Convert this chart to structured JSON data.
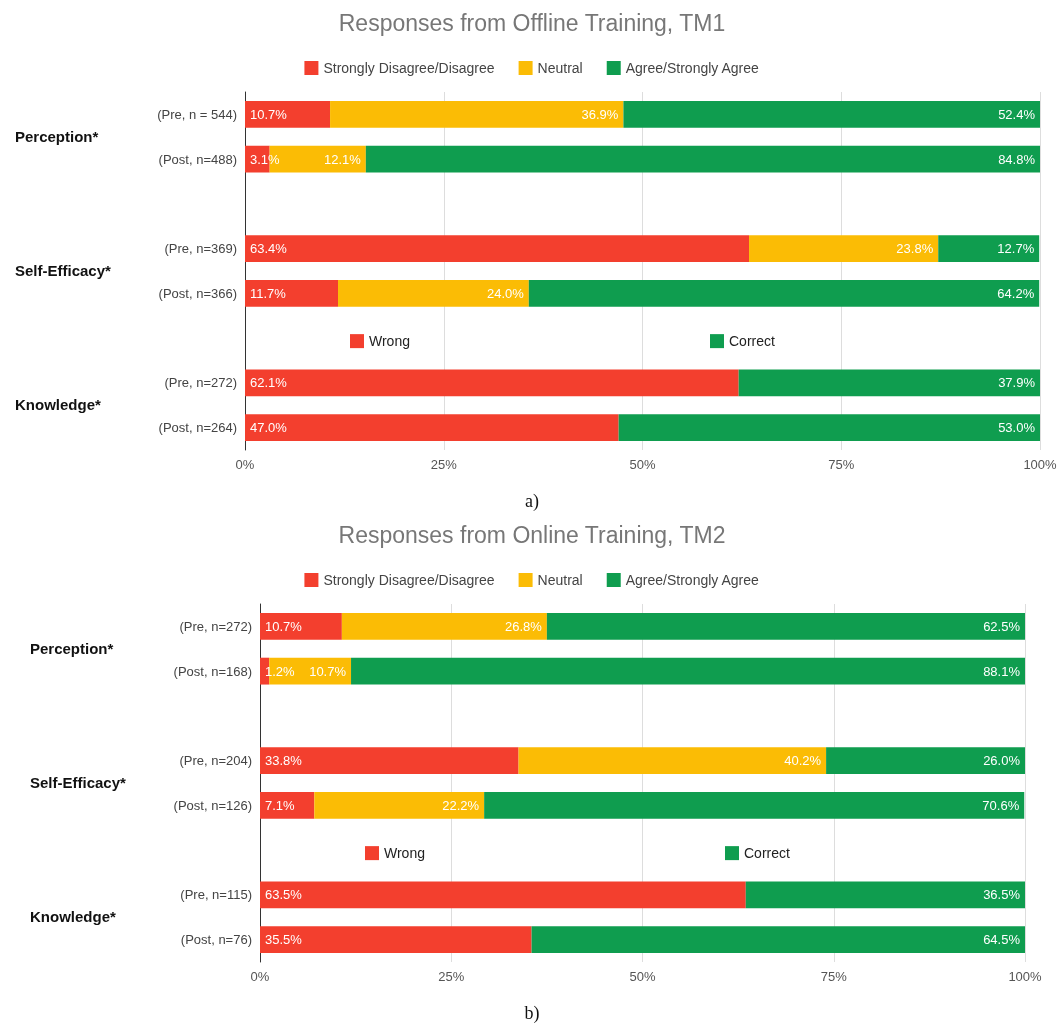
{
  "chart_data": [
    {
      "type": "bar",
      "orientation": "horizontal",
      "stacked": true,
      "title": "Responses from Offline Training, TM1",
      "categories": [
        "(Pre, n = 544)",
        "(Post, n=488)",
        null,
        "(Pre, n=369)",
        "(Post, n=366)",
        null,
        "(Pre, n=272)",
        "(Post, n=264)"
      ],
      "series": [
        {
          "name": "Strongly Disagree/Disagree",
          "color": "#f33f2e",
          "values": [
            10.7,
            3.1,
            null,
            63.4,
            11.7,
            null,
            null,
            null
          ],
          "value_labels": [
            "10.7%",
            "3.1%",
            null,
            "63.4%",
            "11.7%",
            null,
            null,
            null
          ]
        },
        {
          "name": "Neutral",
          "color": "#fbbc05",
          "values": [
            36.9,
            12.1,
            null,
            23.8,
            24.0,
            null,
            null,
            null
          ],
          "value_labels": [
            "36.9%",
            "12.1%",
            null,
            "23.8%",
            "24.0%",
            null,
            null,
            null
          ]
        },
        {
          "name": "Agree/Strongly Agree",
          "color": "#0f9d4f",
          "values": [
            52.4,
            84.8,
            null,
            12.7,
            64.2,
            null,
            null,
            null
          ],
          "value_labels": [
            "52.4%",
            "84.8%",
            null,
            "12.7%",
            "64.2%",
            null,
            null,
            null
          ]
        },
        {
          "name": "Wrong",
          "color": "#f33f2e",
          "values": [
            null,
            null,
            null,
            null,
            null,
            null,
            62.1,
            47.0
          ],
          "value_labels": [
            null,
            null,
            null,
            null,
            null,
            null,
            "62.1%",
            "47.0%"
          ]
        },
        {
          "name": "Correct",
          "color": "#0f9d4f",
          "values": [
            null,
            null,
            null,
            null,
            null,
            null,
            37.9,
            53.0
          ],
          "value_labels": [
            null,
            null,
            null,
            null,
            null,
            null,
            "37.9%",
            "53.0%"
          ]
        }
      ],
      "xlim": [
        0,
        100
      ],
      "xticks": [
        {
          "value": 0,
          "label": "0%"
        },
        {
          "value": 25,
          "label": "25%"
        },
        {
          "value": 50,
          "label": "50%"
        },
        {
          "value": 75,
          "label": "75%"
        },
        {
          "value": 100,
          "label": "100%"
        }
      ],
      "grid": "x",
      "legend": "top",
      "annotations": [
        "Perception*",
        "Self-Efficacy*",
        "Knowledge*",
        "a)"
      ]
    },
    {
      "type": "bar",
      "orientation": "horizontal",
      "stacked": true,
      "title": "Responses from Online Training, TM2",
      "categories": [
        "(Pre, n=272)",
        "(Post, n=168)",
        null,
        "(Pre, n=204)",
        "(Post, n=126)",
        null,
        "(Pre, n=115)",
        "(Post, n=76)"
      ],
      "series": [
        {
          "name": "Strongly Disagree/Disagree",
          "color": "#f33f2e",
          "values": [
            10.7,
            1.2,
            null,
            33.8,
            7.1,
            null,
            null,
            null
          ],
          "value_labels": [
            "10.7%",
            "1.2%",
            null,
            "33.8%",
            "7.1%",
            null,
            null,
            null
          ]
        },
        {
          "name": "Neutral",
          "color": "#fbbc05",
          "values": [
            26.8,
            10.7,
            null,
            40.2,
            22.2,
            null,
            null,
            null
          ],
          "value_labels": [
            "26.8%",
            "10.7%",
            null,
            "40.2%",
            "22.2%",
            null,
            null,
            null
          ]
        },
        {
          "name": "Agree/Strongly Agree",
          "color": "#0f9d4f",
          "values": [
            62.5,
            88.1,
            null,
            26.0,
            70.6,
            null,
            null,
            null
          ],
          "value_labels": [
            "62.5%",
            "88.1%",
            null,
            "26.0%",
            "70.6%",
            null,
            null,
            null
          ]
        },
        {
          "name": "Wrong",
          "color": "#f33f2e",
          "values": [
            null,
            null,
            null,
            null,
            null,
            null,
            63.5,
            35.5
          ],
          "value_labels": [
            null,
            null,
            null,
            null,
            null,
            null,
            "63.5%",
            "35.5%"
          ]
        },
        {
          "name": "Correct",
          "color": "#0f9d4f",
          "values": [
            null,
            null,
            null,
            null,
            null,
            null,
            36.5,
            64.5
          ],
          "value_labels": [
            null,
            null,
            null,
            null,
            null,
            null,
            "36.5%",
            "64.5%"
          ]
        }
      ],
      "xlim": [
        0,
        100
      ],
      "xticks": [
        {
          "value": 0,
          "label": "0%"
        },
        {
          "value": 25,
          "label": "25%"
        },
        {
          "value": 50,
          "label": "50%"
        },
        {
          "value": 75,
          "label": "75%"
        },
        {
          "value": 100,
          "label": "100%"
        }
      ],
      "grid": "x",
      "legend": "top",
      "annotations": [
        "Perception*",
        "Self-Efficacy*",
        "Knowledge*",
        "b)"
      ]
    }
  ]
}
